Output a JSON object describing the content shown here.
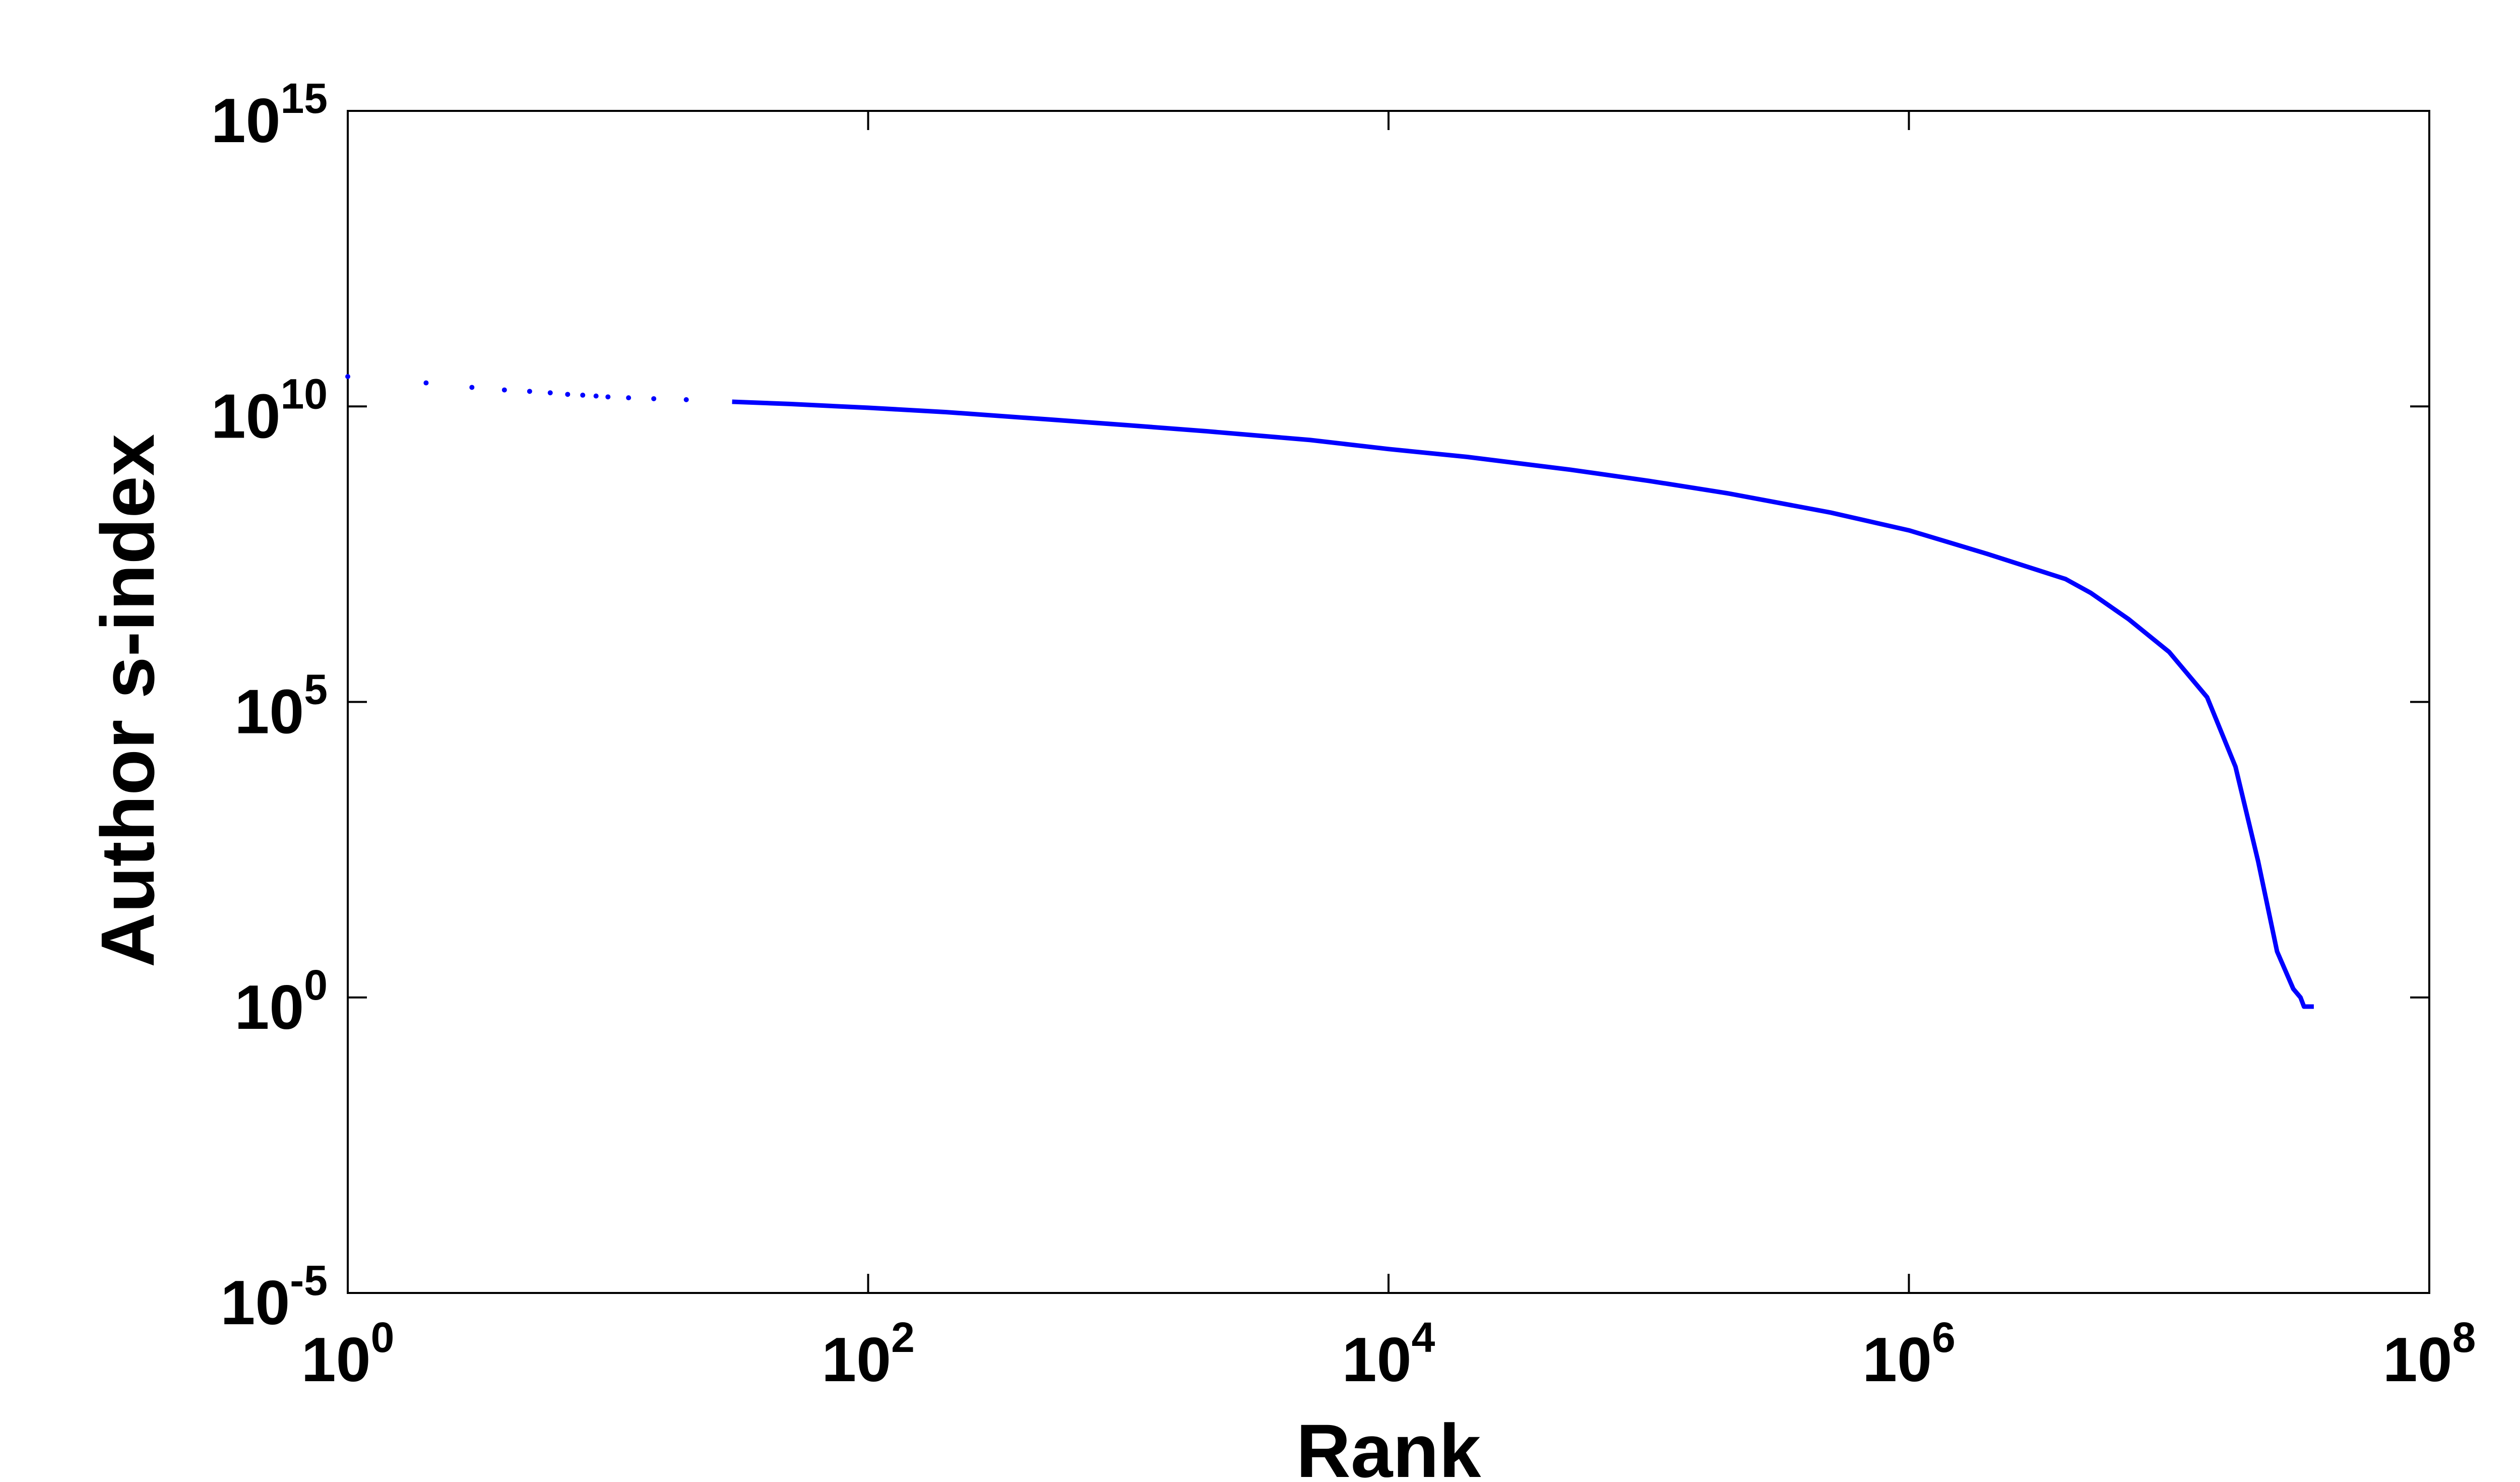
{
  "chart_data": {
    "type": "scatter",
    "xlabel": "Rank",
    "ylabel": "Author s-index",
    "x_scale": "log",
    "y_scale": "log",
    "xlim": [
      1,
      100000000
    ],
    "ylim": [
      1e-05,
      1000000000000000
    ],
    "x_ticks": [
      {
        "base": "10",
        "exp": "0",
        "value": 1
      },
      {
        "base": "10",
        "exp": "2",
        "value": 100
      },
      {
        "base": "10",
        "exp": "4",
        "value": 10000
      },
      {
        "base": "10",
        "exp": "6",
        "value": 1000000
      },
      {
        "base": "10",
        "exp": "8",
        "value": 100000000
      }
    ],
    "y_ticks": [
      {
        "base": "10",
        "exp": "-5",
        "value": 1e-05
      },
      {
        "base": "10",
        "exp": "0",
        "value": 1
      },
      {
        "base": "10",
        "exp": "5",
        "value": 100000
      },
      {
        "base": "10",
        "exp": "10",
        "value": 10000000000
      },
      {
        "base": "10",
        "exp": "15",
        "value": 1000000000000000
      }
    ],
    "grid": false,
    "series_color": "#0000ff",
    "series": [
      {
        "points": [
          [
            1,
            32000000000.0
          ],
          [
            2,
            25000000000.0
          ],
          [
            3,
            21000000000.0
          ],
          [
            4,
            19000000000.0
          ],
          [
            5,
            18000000000.0
          ],
          [
            6,
            17000000000.0
          ],
          [
            7,
            16000000000.0
          ],
          [
            8,
            15500000000.0
          ],
          [
            9,
            15000000000.0
          ],
          [
            10,
            14500000000.0
          ],
          [
            12,
            14000000000.0
          ],
          [
            15,
            13500000000.0
          ],
          [
            20,
            13000000000.0
          ],
          [
            30,
            12000000000.0
          ],
          [
            50,
            11000000000.0
          ],
          [
            100,
            9500000000.0
          ],
          [
            200,
            8000000000.0
          ],
          [
            500,
            6000000000.0
          ],
          [
            1000,
            4800000000.0
          ],
          [
            2000,
            3800000000.0
          ],
          [
            5000,
            2700000000.0
          ],
          [
            10000,
            1900000000.0
          ],
          [
            20000,
            1400000000.0
          ],
          [
            50000,
            850000000.0
          ],
          [
            100000,
            550000000.0
          ],
          [
            200000,
            340000000.0
          ],
          [
            500000,
            160000000.0
          ],
          [
            1000000,
            80000000.0
          ],
          [
            2000000,
            32000000.0
          ],
          [
            4000000,
            12000000.0
          ],
          [
            5000000,
            7000000.0
          ],
          [
            7000000,
            2500000.0
          ],
          [
            10000000,
            700000.0
          ],
          [
            14000000,
            120000.0
          ],
          [
            18000000,
            8000.0
          ],
          [
            22000000,
            200.0
          ],
          [
            26000000,
            6
          ],
          [
            30000000,
            1.4
          ],
          [
            32000000,
            1
          ],
          [
            33000000,
            0.7
          ],
          [
            36000000,
            0.7
          ]
        ]
      }
    ]
  }
}
